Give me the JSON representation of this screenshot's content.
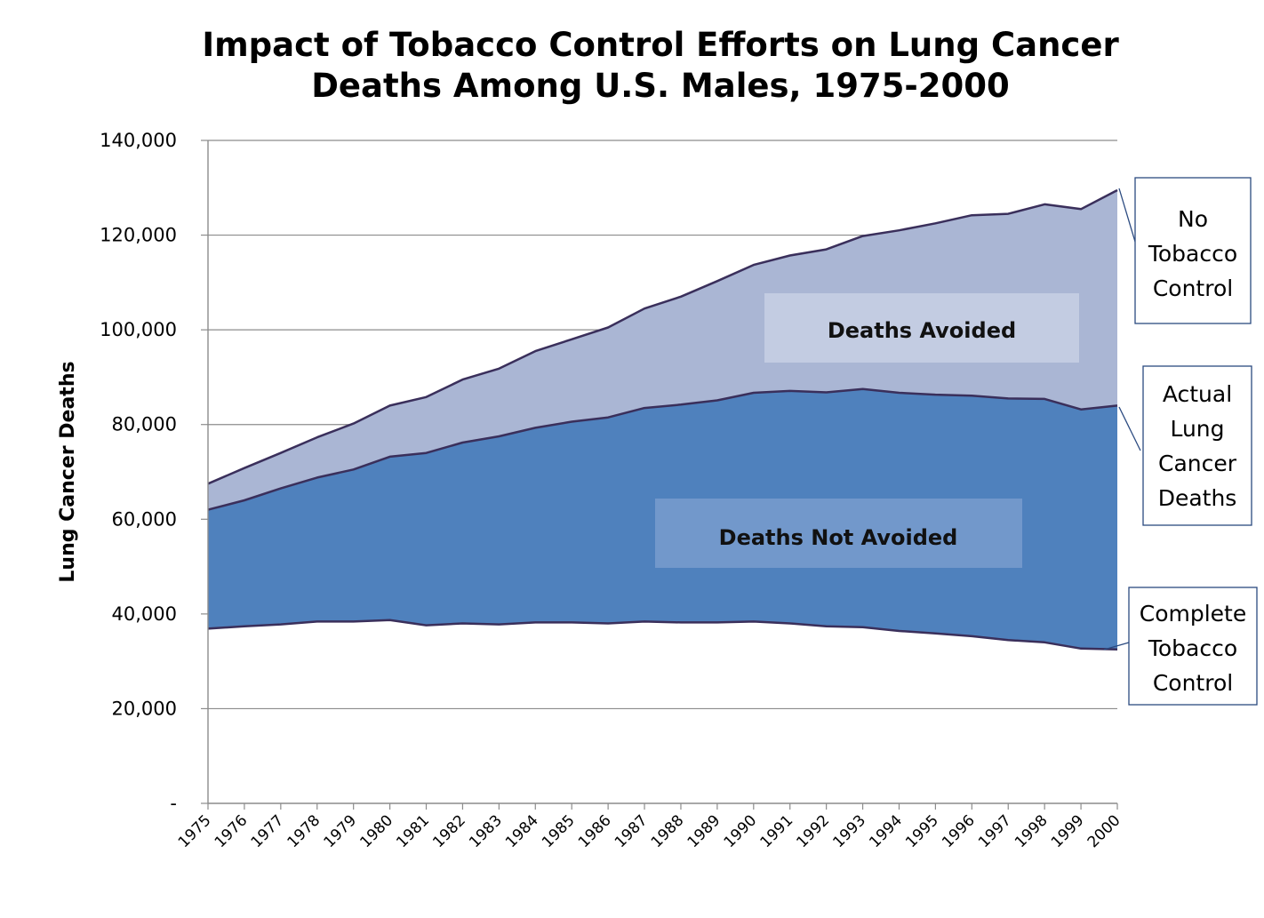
{
  "chart_data": {
    "type": "area",
    "title": [
      "Impact of Tobacco Control Efforts on Lung Cancer",
      "Deaths Among U.S. Males, 1975-2000"
    ],
    "xlabel": "",
    "ylabel": "Lung Cancer Deaths",
    "ylim": [
      0,
      140000
    ],
    "yticks": [
      0,
      20000,
      40000,
      60000,
      80000,
      100000,
      120000,
      140000
    ],
    "ytick_labels": [
      "-",
      "20,000",
      "40,000",
      "60,000",
      "80,000",
      "100,000",
      "120,000",
      "140,000"
    ],
    "categories": [
      "1975",
      "1976",
      "1977",
      "1978",
      "1979",
      "1980",
      "1981",
      "1982",
      "1983",
      "1984",
      "1985",
      "1986",
      "1987",
      "1988",
      "1989",
      "1990",
      "1991",
      "1992",
      "1993",
      "1994",
      "1995",
      "1996",
      "1997",
      "1998",
      "1999",
      "2000"
    ],
    "series": [
      {
        "name": "No Tobacco Control",
        "values": [
          67500,
          70800,
          74000,
          77300,
          80200,
          84000,
          85800,
          89500,
          91800,
          95500,
          98000,
          100500,
          104500,
          107000,
          110300,
          113700,
          115700,
          117000,
          119800,
          121000,
          122500,
          124200,
          124500,
          126500,
          125500,
          129500
        ]
      },
      {
        "name": "Actual Lung Cancer Deaths",
        "values": [
          62000,
          64000,
          66500,
          68800,
          70500,
          73200,
          74000,
          76200,
          77500,
          79300,
          80600,
          81500,
          83500,
          84200,
          85100,
          86700,
          87100,
          86800,
          87500,
          86700,
          86300,
          86100,
          85500,
          85400,
          83200,
          84000
        ]
      },
      {
        "name": "Complete Tobacco Control",
        "values": [
          36900,
          37400,
          37800,
          38400,
          38400,
          38700,
          37600,
          38000,
          37800,
          38200,
          38200,
          38000,
          38400,
          38200,
          38200,
          38400,
          38000,
          37400,
          37200,
          36400,
          35900,
          35300,
          34500,
          34000,
          32700,
          32500
        ]
      }
    ],
    "region_labels": [
      "Deaths Avoided",
      "Deaths Not Avoided"
    ],
    "callouts": [
      {
        "series": "No Tobacco Control",
        "lines": [
          "No",
          "Tobacco",
          "Control"
        ]
      },
      {
        "series": "Actual Lung Cancer Deaths",
        "lines": [
          "Actual",
          "Lung",
          "Cancer",
          "Deaths"
        ]
      },
      {
        "series": "Complete Tobacco Control",
        "lines": [
          "Complete",
          "Tobacco",
          "Control"
        ]
      }
    ],
    "grid": true,
    "colors": {
      "avoided_fill": "#aab6d4",
      "not_avoided_fill": "#4f81bd",
      "series_line": "#3a2f5b",
      "grid": "#8c8c8c",
      "avoided_label_box": "#c3cce2",
      "not_avoided_label_box": "#7298cb",
      "callout_border": "#2b4a80"
    }
  }
}
